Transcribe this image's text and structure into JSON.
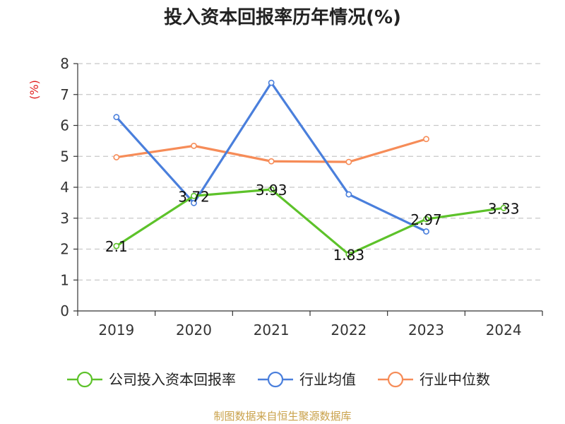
{
  "chart_data": {
    "type": "line",
    "title": "投入资本回报率历年情况(%)",
    "ylabel": "(%)",
    "ylim": [
      0,
      8
    ],
    "yticks": [
      0,
      1,
      2,
      3,
      4,
      5,
      6,
      7,
      8
    ],
    "categories": [
      "2019",
      "2020",
      "2021",
      "2022",
      "2023",
      "2024"
    ],
    "grid": "horizontal dashed",
    "legend_position": "bottom",
    "series": [
      {
        "name": "公司投入资本回报率",
        "color": "#5dc22a",
        "values": [
          2.1,
          3.72,
          3.93,
          1.83,
          2.97,
          3.33
        ],
        "labels": [
          "2.1",
          "3.72",
          "3.93",
          "1.83",
          "2.97",
          "3.33"
        ]
      },
      {
        "name": "行业均值",
        "color": "#4a7fdc",
        "values": [
          6.27,
          3.49,
          7.38,
          3.77,
          2.57,
          null
        ]
      },
      {
        "name": "行业中位数",
        "color": "#f68c58",
        "values": [
          4.97,
          5.34,
          4.84,
          4.82,
          5.56,
          null
        ]
      }
    ]
  },
  "colors": {
    "unit": "#e01f1f",
    "source": "#c9a14a",
    "axis": "#333333",
    "grid": "#c8c8c8"
  },
  "source": "制图数据来自恒生聚源数据库"
}
